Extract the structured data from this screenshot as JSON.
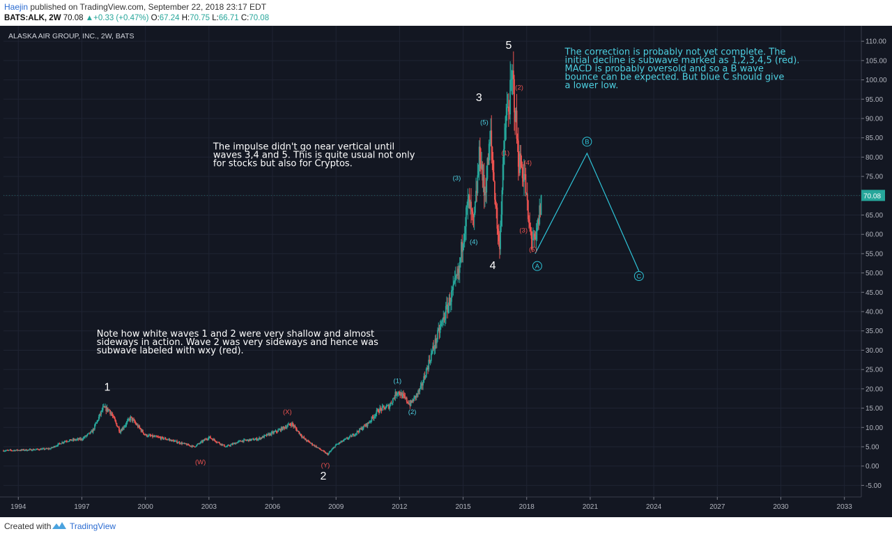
{
  "header": {
    "author": "Haejin",
    "published_text": "published on TradingView.com, September 22, 2018 23:17 EDT",
    "symbol": "BATS:ALK, 2W",
    "last": "70.08",
    "change_arrow": "▲",
    "change": "+0.33 (+0.47%)",
    "o_label": "O:",
    "o": "67.24",
    "h_label": "H:",
    "h": "70.75",
    "l_label": "L:",
    "l": "66.71",
    "c_label": "C:",
    "c": "70.08"
  },
  "footer": {
    "created_with": "Created with",
    "brand": "TradingView"
  },
  "chart_data": {
    "type": "candlestick",
    "title": "ALASKA AIR GROUP, INC., 2W, BATS",
    "xlim": [
      1993.3,
      2033.8
    ],
    "ylim": [
      -8,
      114
    ],
    "x_ticks": [
      1994,
      1997,
      2000,
      2003,
      2006,
      2009,
      2012,
      2015,
      2018,
      2021,
      2024,
      2027,
      2030,
      2033
    ],
    "y_ticks": [
      "-5.00",
      "0.00",
      "5.00",
      "10.00",
      "15.00",
      "20.00",
      "25.00",
      "30.00",
      "35.00",
      "40.00",
      "45.00",
      "50.00",
      "55.00",
      "60.00",
      "65.00",
      "70.00",
      "75.00",
      "80.00",
      "85.00",
      "90.00",
      "95.00",
      "100.00",
      "105.00",
      "110.00"
    ],
    "last_price": 70.08,
    "last_price_label": "70.08",
    "colors": {
      "up": "#26a69a",
      "down": "#ef5350",
      "background": "#131722",
      "projection": "#2ec4d8",
      "label_red": "#ef5350",
      "label_cyan": "#4dd0e1",
      "label_white": "#ffffff",
      "price_tag": "#26a69a"
    },
    "price_path": [
      [
        1993.3,
        4.0
      ],
      [
        1994.5,
        4.2
      ],
      [
        1995.5,
        4.5
      ],
      [
        1996.2,
        6.5
      ],
      [
        1997.0,
        7.0
      ],
      [
        1997.5,
        9.0
      ],
      [
        1998.0,
        15.0
      ],
      [
        1998.3,
        14.5
      ],
      [
        1998.8,
        9.0
      ],
      [
        1999.3,
        12.5
      ],
      [
        2000.0,
        8.0
      ],
      [
        2001.0,
        7.0
      ],
      [
        2002.3,
        5.0
      ],
      [
        2003.0,
        7.5
      ],
      [
        2003.8,
        5.0
      ],
      [
        2004.5,
        6.5
      ],
      [
        2005.3,
        7.0
      ],
      [
        2006.2,
        9.0
      ],
      [
        2006.9,
        11.0
      ],
      [
        2007.5,
        7.0
      ],
      [
        2008.2,
        4.5
      ],
      [
        2008.6,
        3.0
      ],
      [
        2009.0,
        5.5
      ],
      [
        2009.8,
        8.0
      ],
      [
        2010.5,
        11.0
      ],
      [
        2011.0,
        14.5
      ],
      [
        2011.5,
        15.5
      ],
      [
        2011.9,
        19.5
      ],
      [
        2012.5,
        16.0
      ],
      [
        2013.0,
        20.0
      ],
      [
        2013.5,
        29.0
      ],
      [
        2014.0,
        37.0
      ],
      [
        2014.5,
        45.0
      ],
      [
        2014.8,
        50.0
      ],
      [
        2015.0,
        60.0
      ],
      [
        2015.25,
        68.5
      ],
      [
        2015.5,
        62.0
      ],
      [
        2015.8,
        82.0
      ],
      [
        2016.0,
        70.0
      ],
      [
        2016.3,
        85.0
      ],
      [
        2016.7,
        56.0
      ],
      [
        2017.0,
        89.0
      ],
      [
        2017.2,
        95.0
      ],
      [
        2017.35,
        100.5
      ],
      [
        2017.6,
        80.0
      ],
      [
        2017.9,
        75.0
      ],
      [
        2018.1,
        62.0
      ],
      [
        2018.4,
        57.0
      ],
      [
        2018.72,
        70.08
      ]
    ],
    "projection": {
      "points": [
        [
          2018.4,
          55.0
        ],
        [
          2020.85,
          81.0
        ],
        [
          2023.3,
          50.5
        ]
      ],
      "labels": [
        "A",
        "B",
        "C"
      ]
    },
    "wave_labels": [
      {
        "text": "1",
        "x": 1998.2,
        "y": 19.5,
        "color": "white",
        "size": "large"
      },
      {
        "text": "2",
        "x": 2008.4,
        "y": -3.5,
        "color": "white",
        "size": "large"
      },
      {
        "text": "3",
        "x": 2015.75,
        "y": 94.5,
        "color": "white",
        "size": "large"
      },
      {
        "text": "4",
        "x": 2016.4,
        "y": 51.0,
        "color": "white",
        "size": "large"
      },
      {
        "text": "5",
        "x": 2017.15,
        "y": 108.0,
        "color": "white",
        "size": "large"
      },
      {
        "text": "(W)",
        "x": 2002.6,
        "y": 0.5,
        "color": "red",
        "size": "small"
      },
      {
        "text": "(X)",
        "x": 2006.7,
        "y": 13.5,
        "color": "red",
        "size": "small"
      },
      {
        "text": "(Y)",
        "x": 2008.5,
        "y": -0.3,
        "color": "red",
        "size": "small"
      },
      {
        "text": "(1)",
        "x": 2011.9,
        "y": 21.5,
        "color": "cyan",
        "size": "small"
      },
      {
        "text": "(2)",
        "x": 2012.6,
        "y": 13.5,
        "color": "cyan",
        "size": "small"
      },
      {
        "text": "(3)",
        "x": 2014.7,
        "y": 74.0,
        "color": "cyan",
        "size": "small"
      },
      {
        "text": "(4)",
        "x": 2015.5,
        "y": 57.5,
        "color": "cyan",
        "size": "small"
      },
      {
        "text": "(5)",
        "x": 2016.0,
        "y": 88.5,
        "color": "cyan",
        "size": "small"
      },
      {
        "text": "(1)",
        "x": 2017.0,
        "y": 80.5,
        "color": "red",
        "size": "small"
      },
      {
        "text": "(2)",
        "x": 2017.65,
        "y": 97.5,
        "color": "red",
        "size": "small"
      },
      {
        "text": "(3)",
        "x": 2017.85,
        "y": 60.5,
        "color": "red",
        "size": "small"
      },
      {
        "text": "(4)",
        "x": 2018.05,
        "y": 78.0,
        "color": "red",
        "size": "small"
      },
      {
        "text": "(5)",
        "x": 2018.3,
        "y": 55.5,
        "color": "red",
        "size": "small"
      }
    ],
    "annotations": [
      {
        "lines": [
          "The correction is probably not yet complete. The",
          "initial decline is subwave marked as 1,2,3,4,5 (red).",
          "MACD is probably oversold and so a B wave",
          "bounce can be expected. But blue C should give",
          "a lower low."
        ],
        "x": 2019.8,
        "y": 106.5,
        "color": "cyan"
      },
      {
        "lines": [
          "The impulse didn't go near vertical until",
          "waves 3,4 and 5. This is quite usual not only",
          "for stocks but also for Cryptos."
        ],
        "x": 2003.2,
        "y": 82.0,
        "color": "white"
      },
      {
        "lines": [
          "Note how white waves 1 and 2 were very shallow and almost",
          "sideways in action. Wave 2 was very sideways and hence was",
          "subwave labeled with wxy (red)."
        ],
        "x": 1997.7,
        "y": 33.5,
        "color": "white"
      }
    ]
  }
}
